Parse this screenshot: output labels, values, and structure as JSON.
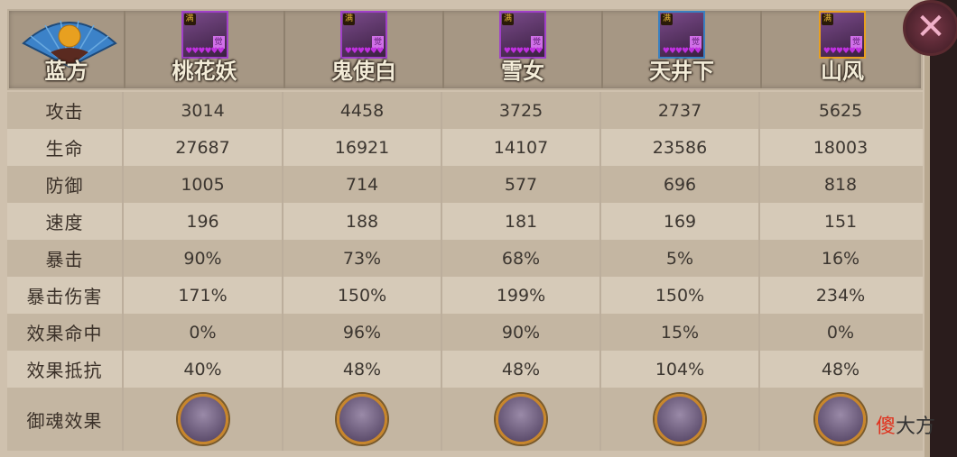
{
  "team_label": "蓝方",
  "characters": [
    {
      "name": "桃花妖",
      "frame": "#a040c8",
      "level_badge": "满",
      "awaken_badge": "觉",
      "stars": "♥♥♥♥♥♥"
    },
    {
      "name": "鬼使白",
      "frame": "#a040c8",
      "level_badge": "满",
      "awaken_badge": "觉",
      "stars": "♥♥♥♥♥♥"
    },
    {
      "name": "雪女",
      "frame": "#a040c8",
      "level_badge": "满",
      "awaken_badge": "觉",
      "stars": "♥♥♥♥♥♥"
    },
    {
      "name": "天井下",
      "frame": "#3a80c0",
      "level_badge": "满",
      "awaken_badge": "觉",
      "stars": "♥♥♥♥♥♥"
    },
    {
      "name": "山风",
      "frame": "#e8a020",
      "level_badge": "满",
      "awaken_badge": "觉",
      "stars": "♥♥♥♥♥♥"
    }
  ],
  "stats": [
    {
      "label": "攻击",
      "values": [
        "3014",
        "4458",
        "3725",
        "2737",
        "5625"
      ]
    },
    {
      "label": "生命",
      "values": [
        "27687",
        "16921",
        "14107",
        "23586",
        "18003"
      ]
    },
    {
      "label": "防御",
      "values": [
        "1005",
        "714",
        "577",
        "696",
        "818"
      ]
    },
    {
      "label": "速度",
      "values": [
        "196",
        "188",
        "181",
        "169",
        "151"
      ]
    },
    {
      "label": "暴击",
      "values": [
        "90%",
        "73%",
        "68%",
        "5%",
        "16%"
      ]
    },
    {
      "label": "暴击伤害",
      "values": [
        "171%",
        "150%",
        "199%",
        "150%",
        "234%"
      ]
    },
    {
      "label": "效果命中",
      "values": [
        "0%",
        "96%",
        "90%",
        "15%",
        "0%"
      ]
    },
    {
      "label": "效果抵抗",
      "values": [
        "40%",
        "48%",
        "48%",
        "104%",
        "48%"
      ]
    }
  ],
  "soul_row_label": "御魂效果",
  "close_icon": "✕",
  "watermark": {
    "red": "傻",
    "rest": "大方"
  }
}
